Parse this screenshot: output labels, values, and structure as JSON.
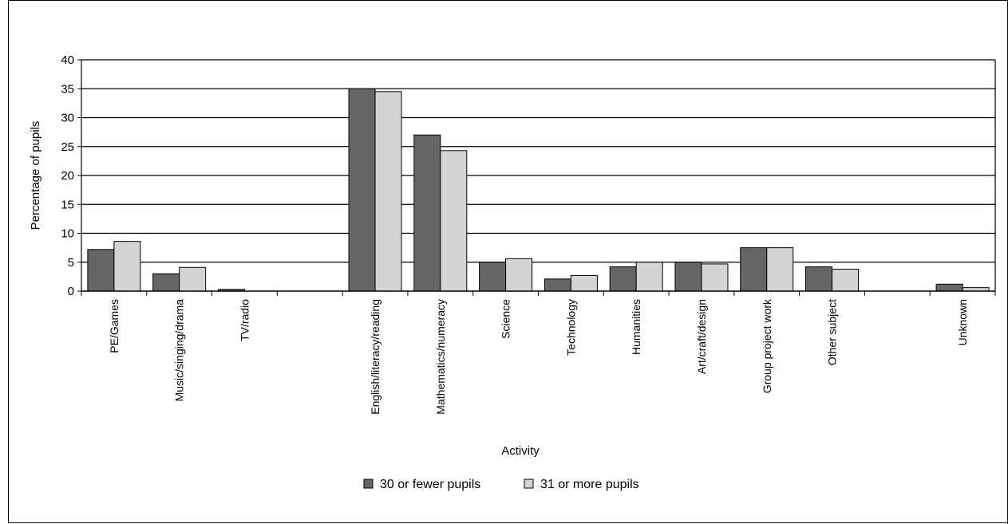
{
  "chart_data": {
    "type": "bar",
    "title": "",
    "xlabel": "Activity",
    "ylabel": "Percentage of pupils",
    "ylim": [
      0,
      40
    ],
    "yticks": [
      0,
      5,
      10,
      15,
      20,
      25,
      30,
      35,
      40
    ],
    "grid": true,
    "legend_position": "bottom",
    "categories": [
      "PE/Games",
      "Music/singing/drama",
      "TV/radio",
      "",
      "English/literacy/reading",
      "Mathematics/numeracy",
      "Science",
      "Technology",
      "Humanities",
      "Art/craft/design",
      "Group project work",
      "Other subject",
      "",
      "Unknown"
    ],
    "series": [
      {
        "name": "30 or fewer pupils",
        "color": "#666666",
        "values": [
          7.2,
          3.0,
          0.3,
          0,
          35.0,
          27.0,
          5.0,
          2.1,
          4.2,
          5.0,
          7.5,
          4.2,
          0,
          1.2
        ]
      },
      {
        "name": "31 or more pupils",
        "color": "#d4d4d4",
        "values": [
          8.6,
          4.1,
          0,
          0,
          34.5,
          24.3,
          5.6,
          2.7,
          5.0,
          4.7,
          7.5,
          3.8,
          0,
          0.6
        ]
      }
    ]
  }
}
